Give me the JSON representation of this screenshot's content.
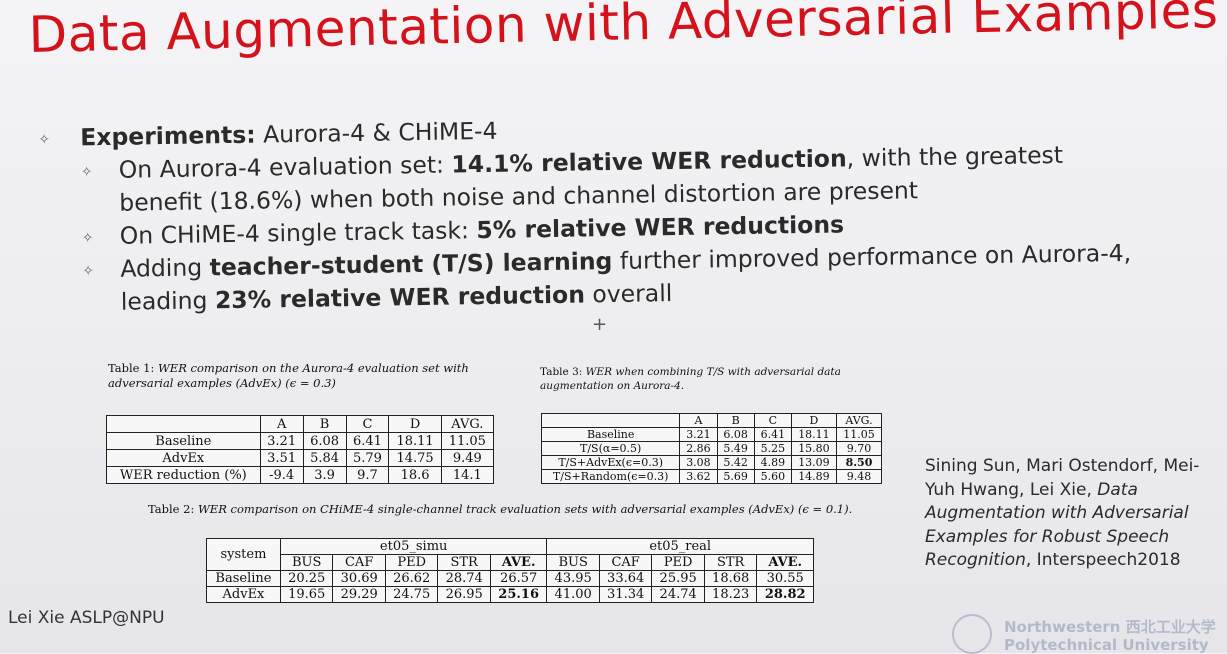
{
  "slide": {
    "title": "Data Augmentation with Adversarial Examples",
    "plus": "+",
    "footer": "Lei Xie  ASLP@NPU"
  },
  "bullets": {
    "b1_lead": "Experiments:",
    "b1_rest": " Aurora-4 & CHiME-4",
    "s1_a": "On Aurora-4 evaluation set: ",
    "s1_b": "14.1% relative WER reduction",
    "s1_c": ", with the greatest",
    "s1_d": "benefit (18.6%) when both noise and channel distortion are present",
    "s2_a": "On CHiME-4 single track task: ",
    "s2_b": "5% relative WER reductions",
    "s3_a": "Adding ",
    "s3_b": "teacher-student (T/S) learning",
    "s3_c": " further improved performance on Aurora-4,",
    "s3_d": "leading ",
    "s3_e": "23% relative WER reduction",
    "s3_f": " overall"
  },
  "table1": {
    "caption_a": "Table 1: ",
    "caption_b": "WER comparison on the Aurora-4 evaluation set with adversarial examples (AdvEx) (ϵ = 0.3)",
    "headers": [
      "",
      "A",
      "B",
      "C",
      "D",
      "AVG."
    ],
    "rows": [
      [
        "Baseline",
        "3.21",
        "6.08",
        "6.41",
        "18.11",
        "11.05"
      ],
      [
        "AdvEx",
        "3.51",
        "5.84",
        "5.79",
        "14.75",
        "9.49"
      ],
      [
        "WER reduction (%)",
        "-9.4",
        "3.9",
        "9.7",
        "18.6",
        "14.1"
      ]
    ]
  },
  "table3": {
    "caption_a": "Table 3: ",
    "caption_b": "WER when combining T/S with adversarial data augmentation on Aurora-4.",
    "headers": [
      "",
      "A",
      "B",
      "C",
      "D",
      "AVG."
    ],
    "rows": [
      [
        "Baseline",
        "3.21",
        "6.08",
        "6.41",
        "18.11",
        "11.05"
      ],
      [
        "T/S(α=0.5)",
        "2.86",
        "5.49",
        "5.25",
        "15.80",
        "9.70"
      ],
      [
        "T/S+AdvEx(ϵ=0.3)",
        "3.08",
        "5.42",
        "4.89",
        "13.09",
        "8.50"
      ],
      [
        "T/S+Random(ϵ=0.3)",
        "3.62",
        "5.69",
        "5.60",
        "14.89",
        "9.48"
      ]
    ]
  },
  "table2": {
    "caption_a": "Table 2: ",
    "caption_b": "WER comparison on CHiME-4 single-channel track evaluation sets with adversarial examples (AdvEx) (ϵ = 0.1).",
    "system": "system",
    "group1": "et05_simu",
    "group2": "et05_real",
    "subheaders": [
      "BUS",
      "CAF",
      "PED",
      "STR",
      "AVE.",
      "BUS",
      "CAF",
      "PED",
      "STR",
      "AVE."
    ],
    "rows": [
      [
        "Baseline",
        "20.25",
        "30.69",
        "26.62",
        "28.74",
        "26.57",
        "43.95",
        "33.64",
        "25.95",
        "18.68",
        "30.55"
      ],
      [
        "AdvEx",
        "19.65",
        "29.29",
        "24.75",
        "26.95",
        "25.16",
        "41.00",
        "31.34",
        "24.74",
        "18.23",
        "28.82"
      ]
    ]
  },
  "citation": {
    "authors": "Sining Sun, Mari Ostendorf, Mei-Yuh Hwang, Lei Xie, ",
    "paper": "Data Augmentation with Adversarial Examples for Robust Speech Recognition",
    "venue": ", Interspeech2018"
  },
  "logo": {
    "line1": "Northwestern 西北工业大学",
    "line2": "Polytechnical University"
  },
  "colors": {
    "title": "#d3121c"
  }
}
